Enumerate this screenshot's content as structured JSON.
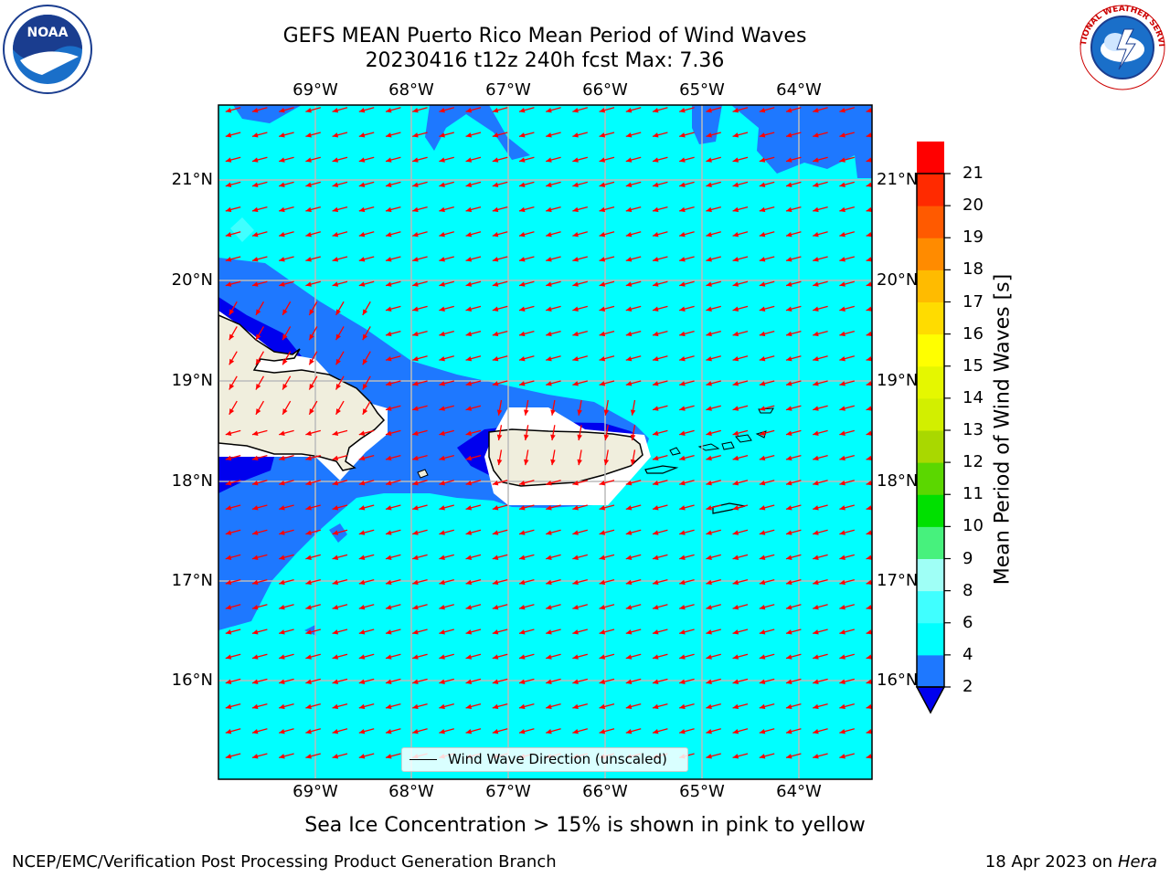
{
  "title_line1": "GEFS MEAN Puerto Rico Mean Period of Wind Waves",
  "title_line2": "20230416 t12z 240h fcst   Max: 7.36",
  "lon_labels": [
    "69°W",
    "68°W",
    "67°W",
    "66°W",
    "65°W",
    "64°W"
  ],
  "lat_labels": [
    "21°N",
    "20°N",
    "19°N",
    "18°N",
    "17°N",
    "16°N"
  ],
  "colorbar": {
    "label": "Mean Period of Wind Waves [s]",
    "ticks": [
      "21",
      "20",
      "19",
      "18",
      "17",
      "16",
      "15",
      "14",
      "13",
      "12",
      "11",
      "10",
      "9",
      "8",
      "6",
      "4",
      "2"
    ],
    "colors": [
      "#0000ee",
      "#1e78ff",
      "#00ffff",
      "#40ffff",
      "#9ffff6",
      "#47f17d",
      "#00e000",
      "#5bd700",
      "#a9d800",
      "#d2ef00",
      "#e5f700",
      "#ffff00",
      "#ffdc00",
      "#ffbb00",
      "#ff8b00",
      "#ff5a00",
      "#ff2a00",
      "#ff0000"
    ]
  },
  "legend": {
    "label": "Wind Wave Direction (unscaled)"
  },
  "footnote": "Sea Ice Concentration > 15% is shown in pink to yellow",
  "footer_left": "NCEP/EMC/Verification Post Processing Product Generation Branch",
  "footer_date": "18 Apr 2023 on",
  "footer_host": "Hera",
  "logo_left": "NOAA",
  "logo_right": "NATIONAL WEATHER SERVICE",
  "colors": {
    "land": "#f0eedd",
    "deep": "#1e78ff",
    "darkest": "#0000ee",
    "ocean": "#00ffff",
    "arrow": "#ff0000"
  }
}
